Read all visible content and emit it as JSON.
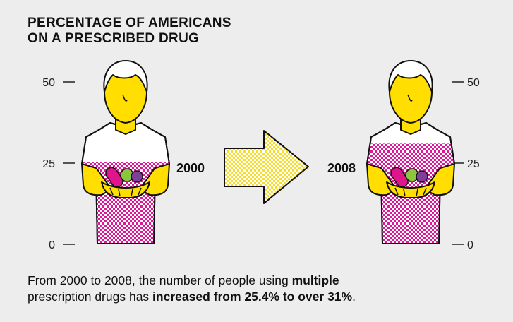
{
  "title": {
    "line1": "PERCENTAGE OF AMERICANS",
    "line2": "ON A PRESCRIBED DRUG"
  },
  "chart_data": {
    "type": "bar",
    "title": "PERCENTAGE OF AMERICANS ON A PRESCRIBED DRUG",
    "categories": [
      "2000",
      "2008"
    ],
    "values": [
      25.4,
      31
    ],
    "ylim": [
      0,
      50
    ],
    "yticks": [
      "0",
      "25",
      "50"
    ],
    "xlabel": "",
    "ylabel": "",
    "legend": "none",
    "grid": false
  },
  "caption": {
    "line1_prefix": "From 2000 to 2008, the number of people using ",
    "line1_bold": "multiple",
    "line2_prefix": "prescription drugs has ",
    "line2_bold": "increased from 25.4% to over 31%",
    "line2_suffix": "."
  },
  "colors": {
    "background": "#ededed",
    "skin": "#ffde00",
    "shirt_white": "#ffffff",
    "pattern_magenta": "#e0149a",
    "outline": "#111111",
    "arrow_yellow": "#f7dc2a",
    "pill_pink": "#e0148c",
    "pill_green": "#8cc63e",
    "pill_purple": "#7f3f98"
  }
}
